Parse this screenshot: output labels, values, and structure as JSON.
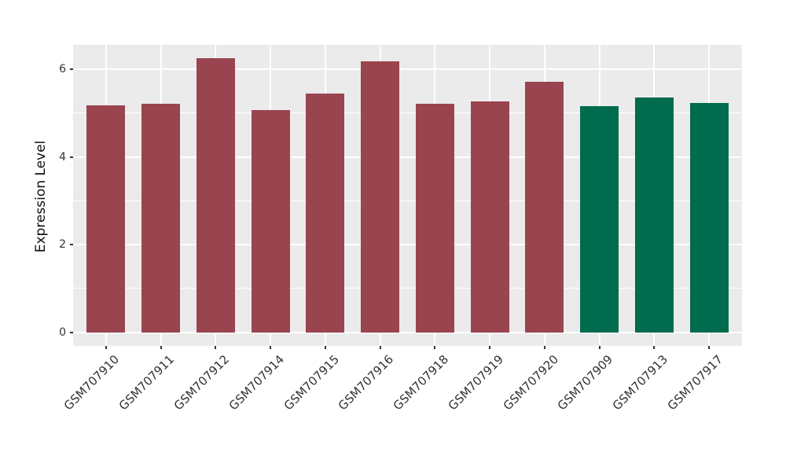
{
  "chart_data": {
    "type": "bar",
    "title": "",
    "xlabel": "",
    "ylabel": "Expression Level",
    "categories": [
      "GSM707910",
      "GSM707911",
      "GSM707912",
      "GSM707914",
      "GSM707915",
      "GSM707916",
      "GSM707918",
      "GSM707919",
      "GSM707920",
      "GSM707909",
      "GSM707913",
      "GSM707917"
    ],
    "values": [
      5.17,
      5.21,
      6.25,
      5.08,
      5.44,
      6.18,
      5.22,
      5.26,
      5.72,
      5.16,
      5.35,
      5.24
    ],
    "bar_colors": [
      "#9A4450",
      "#9A4450",
      "#9A4450",
      "#9A4450",
      "#9A4450",
      "#9A4450",
      "#9A4450",
      "#9A4450",
      "#9A4450",
      "#006B4D",
      "#006B4D",
      "#006B4D"
    ],
    "group_colors": {
      "group1": "#9A4450",
      "group2": "#006B4D"
    },
    "yticks": [
      0,
      2,
      4,
      6
    ],
    "yticks_minor": [
      1,
      3,
      5
    ],
    "ylim": [
      -0.31,
      6.56
    ],
    "bar_width_fraction": 0.7,
    "grid": true,
    "legend_position": "none",
    "panel_bg": "#EBEBEB",
    "grid_color": "#FFFFFF",
    "tick_color": "#333333",
    "figure_bg": "#FFFFFF"
  }
}
